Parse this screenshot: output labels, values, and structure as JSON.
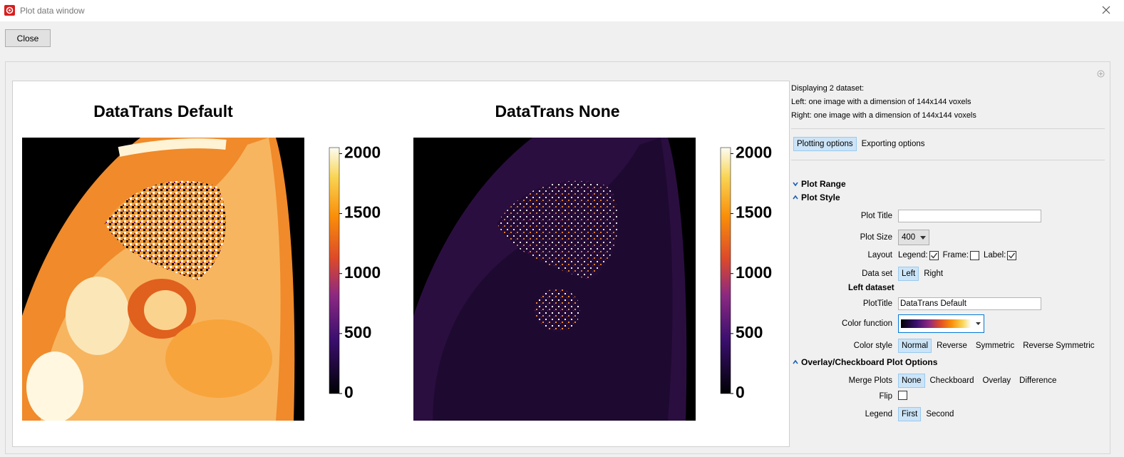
{
  "window": {
    "title": "Plot data window"
  },
  "toolbar": {
    "close_button": "Close"
  },
  "plots": [
    {
      "title": "DataTrans Default",
      "colorbar": {
        "lim": [
          0,
          2050
        ],
        "ticks": [
          0,
          500,
          1000,
          1500,
          2000
        ]
      }
    },
    {
      "title": "DataTrans None",
      "colorbar": {
        "lim": [
          0,
          2050
        ],
        "ticks": [
          0,
          500,
          1000,
          1500,
          2000
        ]
      }
    }
  ],
  "panel": {
    "info": [
      "Displaying 2 dataset:",
      "Left: one image with a dimension of 144x144 voxels",
      "Right: one image with a dimension of 144x144 voxels"
    ],
    "tabs": {
      "options": [
        "Plotting options",
        "Exporting options"
      ],
      "selected": 0
    },
    "plot_range": {
      "heading": "Plot Range",
      "expanded": false
    },
    "plot_style": {
      "heading": "Plot Style",
      "expanded": true,
      "plot_title": {
        "label": "Plot Title"
      },
      "plot_size": {
        "label": "Plot Size",
        "value": "400"
      },
      "layout": {
        "label": "Layout",
        "items": [
          {
            "label": "Legend:",
            "checked": true
          },
          {
            "label": "Frame:",
            "checked": false
          },
          {
            "label": "Label:",
            "checked": true
          }
        ]
      },
      "data_set": {
        "label": "Data set",
        "options": [
          "Left",
          "Right"
        ],
        "selected": 0
      },
      "dataset_heading": "Left dataset",
      "dataset_title": {
        "label": "PlotTitle",
        "value": "DataTrans Default"
      },
      "color_function": {
        "label": "Color function"
      },
      "color_style": {
        "label": "Color style",
        "options": [
          "Normal",
          "Reverse",
          "Symmetric",
          "Reverse Symmetric"
        ],
        "selected": 0
      }
    },
    "overlay": {
      "heading": "Overlay/Checkboard Plot Options",
      "expanded": true,
      "merge_plots": {
        "label": "Merge Plots",
        "options": [
          "None",
          "Checkboard",
          "Overlay",
          "Difference"
        ],
        "selected": 0
      },
      "flip": {
        "label": "Flip",
        "checked": false
      },
      "legend": {
        "label": "Legend",
        "options": [
          "First",
          "Second"
        ],
        "selected": 0
      }
    }
  }
}
